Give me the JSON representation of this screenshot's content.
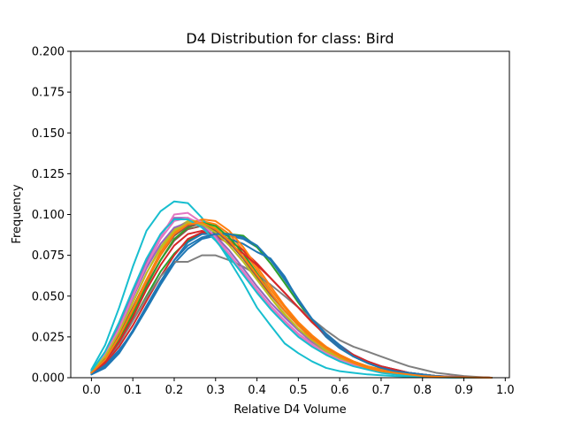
{
  "chart_data": {
    "type": "line",
    "title": "D4 Distribution for class: Bird",
    "xlabel": "Relative D4 Volume",
    "ylabel": "Frequency",
    "xlim": [
      -0.05,
      1.01
    ],
    "ylim": [
      0.0,
      0.2
    ],
    "xticks": [
      0.0,
      0.1,
      0.2,
      0.3,
      0.4,
      0.5,
      0.6,
      0.7,
      0.8,
      0.9,
      1.0
    ],
    "xtick_labels": [
      "0.0",
      "0.1",
      "0.2",
      "0.3",
      "0.4",
      "0.5",
      "0.6",
      "0.7",
      "0.8",
      "0.9",
      "1.0"
    ],
    "yticks": [
      0.0,
      0.025,
      0.05,
      0.075,
      0.1,
      0.125,
      0.15,
      0.175,
      0.2
    ],
    "ytick_labels": [
      "0.000",
      "0.025",
      "0.050",
      "0.075",
      "0.100",
      "0.125",
      "0.150",
      "0.175",
      "0.200"
    ],
    "grid": false,
    "legend": "none",
    "x": [
      0.0,
      0.033,
      0.067,
      0.1,
      0.133,
      0.167,
      0.2,
      0.233,
      0.267,
      0.3,
      0.333,
      0.367,
      0.4,
      0.433,
      0.467,
      0.5,
      0.533,
      0.567,
      0.6,
      0.633,
      0.667,
      0.7,
      0.733,
      0.767,
      0.8,
      0.833,
      0.867,
      0.9,
      0.933,
      0.967
    ],
    "series": [
      {
        "color": "#1f77b4",
        "values": [
          0.003,
          0.008,
          0.017,
          0.028,
          0.042,
          0.057,
          0.07,
          0.079,
          0.085,
          0.087,
          0.087,
          0.085,
          0.08,
          0.072,
          0.061,
          0.048,
          0.035,
          0.025,
          0.018,
          0.013,
          0.009,
          0.006,
          0.004,
          0.003,
          0.002,
          0.001,
          0.0005,
          0.0003,
          0.0001,
          0.0
        ]
      },
      {
        "color": "#ff7f0e",
        "values": [
          0.004,
          0.012,
          0.026,
          0.043,
          0.06,
          0.077,
          0.089,
          0.095,
          0.096,
          0.094,
          0.088,
          0.078,
          0.066,
          0.054,
          0.043,
          0.033,
          0.025,
          0.019,
          0.014,
          0.01,
          0.007,
          0.005,
          0.003,
          0.002,
          0.001,
          0.0007,
          0.0004,
          0.0002,
          0.0001,
          0.0
        ]
      },
      {
        "color": "#2ca02c",
        "values": [
          0.003,
          0.01,
          0.021,
          0.035,
          0.05,
          0.065,
          0.076,
          0.084,
          0.088,
          0.089,
          0.088,
          0.087,
          0.08,
          0.07,
          0.058,
          0.046,
          0.035,
          0.026,
          0.019,
          0.013,
          0.009,
          0.006,
          0.004,
          0.003,
          0.002,
          0.001,
          0.0005,
          0.0003,
          0.0001,
          0.0
        ]
      },
      {
        "color": "#d62728",
        "values": [
          0.003,
          0.009,
          0.019,
          0.032,
          0.047,
          0.062,
          0.075,
          0.085,
          0.089,
          0.088,
          0.084,
          0.078,
          0.07,
          0.061,
          0.052,
          0.043,
          0.034,
          0.026,
          0.019,
          0.014,
          0.01,
          0.007,
          0.005,
          0.003,
          0.002,
          0.001,
          0.0007,
          0.0004,
          0.0002,
          0.0
        ]
      },
      {
        "color": "#9467bd",
        "values": [
          0.004,
          0.015,
          0.032,
          0.052,
          0.071,
          0.088,
          0.098,
          0.098,
          0.093,
          0.085,
          0.075,
          0.064,
          0.053,
          0.043,
          0.034,
          0.026,
          0.02,
          0.015,
          0.011,
          0.008,
          0.006,
          0.004,
          0.003,
          0.002,
          0.001,
          0.0007,
          0.0004,
          0.0002,
          0.0001,
          0.0
        ]
      },
      {
        "color": "#8c564b",
        "values": [
          0.003,
          0.011,
          0.024,
          0.04,
          0.057,
          0.072,
          0.084,
          0.091,
          0.093,
          0.09,
          0.083,
          0.073,
          0.062,
          0.051,
          0.041,
          0.032,
          0.024,
          0.018,
          0.013,
          0.009,
          0.006,
          0.004,
          0.003,
          0.002,
          0.001,
          0.0006,
          0.0003,
          0.0002,
          0.0001,
          0.0
        ]
      },
      {
        "color": "#e377c2",
        "values": [
          0.004,
          0.014,
          0.03,
          0.049,
          0.068,
          0.085,
          0.096,
          0.098,
          0.094,
          0.086,
          0.076,
          0.065,
          0.054,
          0.044,
          0.035,
          0.027,
          0.021,
          0.016,
          0.012,
          0.008,
          0.006,
          0.004,
          0.003,
          0.002,
          0.001,
          0.0007,
          0.0004,
          0.0002,
          0.0001,
          0.0
        ]
      },
      {
        "color": "#7f7f7f",
        "values": [
          0.003,
          0.01,
          0.021,
          0.035,
          0.049,
          0.062,
          0.071,
          0.071,
          0.075,
          0.075,
          0.072,
          0.068,
          0.063,
          0.057,
          0.05,
          0.043,
          0.036,
          0.029,
          0.023,
          0.019,
          0.016,
          0.013,
          0.01,
          0.007,
          0.005,
          0.003,
          0.002,
          0.001,
          0.0005,
          0.0
        ]
      },
      {
        "color": "#bcbd22",
        "values": [
          0.004,
          0.013,
          0.028,
          0.046,
          0.064,
          0.08,
          0.091,
          0.096,
          0.096,
          0.092,
          0.084,
          0.073,
          0.061,
          0.049,
          0.038,
          0.029,
          0.022,
          0.016,
          0.012,
          0.008,
          0.006,
          0.004,
          0.003,
          0.002,
          0.001,
          0.0006,
          0.0003,
          0.0002,
          0.0001,
          0.0
        ]
      },
      {
        "color": "#17becf",
        "values": [
          0.005,
          0.02,
          0.043,
          0.068,
          0.09,
          0.102,
          0.108,
          0.107,
          0.098,
          0.085,
          0.072,
          0.058,
          0.043,
          0.032,
          0.021,
          0.015,
          0.01,
          0.006,
          0.004,
          0.003,
          0.002,
          0.0015,
          0.001,
          0.0007,
          0.0004,
          0.0002,
          0.0001,
          0.0001,
          0.0,
          0.0
        ]
      },
      {
        "color": "#1f77b4",
        "values": [
          0.002,
          0.006,
          0.015,
          0.028,
          0.043,
          0.058,
          0.072,
          0.083,
          0.088,
          0.088,
          0.085,
          0.082,
          0.077,
          0.073,
          0.062,
          0.047,
          0.036,
          0.027,
          0.02,
          0.014,
          0.01,
          0.007,
          0.005,
          0.003,
          0.002,
          0.001,
          0.0006,
          0.0003,
          0.0001,
          0.0
        ]
      },
      {
        "color": "#ff7f0e",
        "values": [
          0.003,
          0.011,
          0.024,
          0.041,
          0.059,
          0.075,
          0.087,
          0.094,
          0.097,
          0.096,
          0.09,
          0.08,
          0.068,
          0.056,
          0.044,
          0.034,
          0.026,
          0.019,
          0.014,
          0.01,
          0.007,
          0.005,
          0.003,
          0.002,
          0.001,
          0.0007,
          0.0004,
          0.0002,
          0.0001,
          0.0
        ]
      },
      {
        "color": "#2ca02c",
        "values": [
          0.003,
          0.011,
          0.023,
          0.039,
          0.056,
          0.072,
          0.085,
          0.092,
          0.095,
          0.093,
          0.086,
          0.076,
          0.064,
          0.052,
          0.041,
          0.032,
          0.024,
          0.018,
          0.013,
          0.009,
          0.006,
          0.004,
          0.003,
          0.002,
          0.001,
          0.0006,
          0.0003,
          0.0002,
          0.0001,
          0.0
        ]
      },
      {
        "color": "#d62728",
        "values": [
          0.003,
          0.01,
          0.022,
          0.037,
          0.054,
          0.069,
          0.081,
          0.088,
          0.09,
          0.087,
          0.082,
          0.076,
          0.069,
          0.061,
          0.052,
          0.043,
          0.034,
          0.026,
          0.019,
          0.014,
          0.01,
          0.007,
          0.005,
          0.003,
          0.002,
          0.001,
          0.0007,
          0.0004,
          0.0002,
          0.0
        ]
      },
      {
        "color": "#9467bd",
        "values": [
          0.004,
          0.014,
          0.03,
          0.049,
          0.067,
          0.082,
          0.092,
          0.095,
          0.093,
          0.087,
          0.078,
          0.067,
          0.056,
          0.046,
          0.037,
          0.029,
          0.022,
          0.017,
          0.012,
          0.009,
          0.006,
          0.004,
          0.003,
          0.002,
          0.001,
          0.0007,
          0.0004,
          0.0002,
          0.0001,
          0.0
        ]
      },
      {
        "color": "#8c564b",
        "values": [
          0.003,
          0.012,
          0.026,
          0.043,
          0.06,
          0.076,
          0.087,
          0.093,
          0.094,
          0.09,
          0.083,
          0.073,
          0.062,
          0.051,
          0.041,
          0.032,
          0.024,
          0.018,
          0.013,
          0.009,
          0.006,
          0.004,
          0.003,
          0.002,
          0.001,
          0.0006,
          0.0003,
          0.0002,
          0.0001,
          0.0
        ]
      },
      {
        "color": "#e377c2",
        "values": [
          0.004,
          0.014,
          0.03,
          0.05,
          0.069,
          0.086,
          0.1,
          0.101,
          0.095,
          0.086,
          0.075,
          0.064,
          0.053,
          0.043,
          0.034,
          0.026,
          0.02,
          0.015,
          0.011,
          0.008,
          0.006,
          0.004,
          0.003,
          0.002,
          0.001,
          0.0007,
          0.0004,
          0.0002,
          0.0001,
          0.0
        ]
      },
      {
        "color": "#bcbd22",
        "values": [
          0.004,
          0.013,
          0.028,
          0.046,
          0.064,
          0.079,
          0.09,
          0.095,
          0.094,
          0.089,
          0.081,
          0.071,
          0.06,
          0.049,
          0.039,
          0.03,
          0.023,
          0.017,
          0.012,
          0.009,
          0.006,
          0.004,
          0.003,
          0.002,
          0.001,
          0.0006,
          0.0003,
          0.0002,
          0.0001,
          0.0
        ]
      },
      {
        "color": "#17becf",
        "values": [
          0.004,
          0.016,
          0.034,
          0.054,
          0.073,
          0.088,
          0.097,
          0.097,
          0.092,
          0.084,
          0.074,
          0.063,
          0.052,
          0.042,
          0.033,
          0.025,
          0.019,
          0.014,
          0.01,
          0.007,
          0.005,
          0.003,
          0.002,
          0.001,
          0.0007,
          0.0004,
          0.0002,
          0.0001,
          0.0,
          0.0
        ]
      },
      {
        "color": "#1f77b4",
        "values": [
          0.002,
          0.007,
          0.016,
          0.029,
          0.044,
          0.059,
          0.072,
          0.081,
          0.086,
          0.088,
          0.088,
          0.086,
          0.081,
          0.072,
          0.06,
          0.048,
          0.036,
          0.026,
          0.019,
          0.013,
          0.009,
          0.006,
          0.004,
          0.003,
          0.002,
          0.001,
          0.0005,
          0.0003,
          0.0001,
          0.0
        ]
      },
      {
        "color": "#ff7f0e",
        "values": [
          0.003,
          0.011,
          0.025,
          0.042,
          0.06,
          0.076,
          0.088,
          0.094,
          0.095,
          0.091,
          0.084,
          0.074,
          0.063,
          0.052,
          0.041,
          0.032,
          0.024,
          0.018,
          0.013,
          0.009,
          0.006,
          0.004,
          0.003,
          0.002,
          0.001,
          0.0006,
          0.0003,
          0.0002,
          0.0001,
          0.0
        ]
      }
    ]
  }
}
